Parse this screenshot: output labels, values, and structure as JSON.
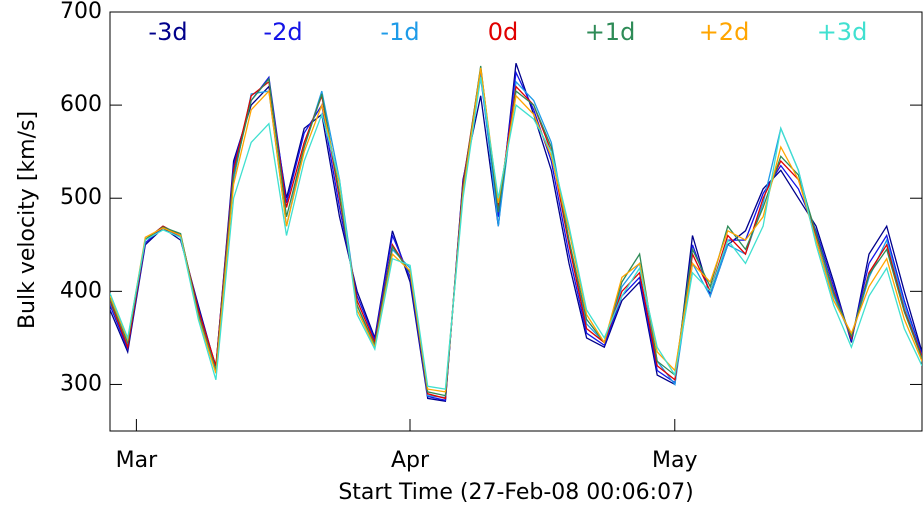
{
  "chart_data": {
    "type": "line",
    "ylabel": "Bulk velocity [km/s]",
    "xlabel": "Start Time (27-Feb-08 00:06:07)",
    "xlim": [
      0,
      92
    ],
    "ylim": [
      250,
      700
    ],
    "xticks": [
      {
        "value": 2.99,
        "label": "Mar"
      },
      {
        "value": 33.99,
        "label": "Apr"
      },
      {
        "value": 63.99,
        "label": "May"
      }
    ],
    "yticks": [
      300,
      400,
      500,
      600,
      700
    ],
    "x": [
      0,
      2,
      4,
      6,
      8,
      10,
      12,
      14,
      16,
      18,
      20,
      22,
      24,
      26,
      28,
      30,
      32,
      34,
      36,
      38,
      40,
      42,
      44,
      46,
      48,
      50,
      52,
      54,
      56,
      58,
      60,
      62,
      64,
      66,
      68,
      70,
      72,
      74,
      76,
      78,
      80,
      82,
      84,
      86,
      88,
      90,
      92
    ],
    "series": [
      {
        "name": "-3d",
        "color": "#00008b",
        "values": [
          380,
          335,
          450,
          468,
          455,
          385,
          318,
          540,
          600,
          620,
          500,
          575,
          590,
          480,
          400,
          350,
          465,
          410,
          285,
          282,
          520,
          610,
          470,
          645,
          590,
          530,
          430,
          350,
          340,
          390,
          410,
          310,
          300,
          460,
          395,
          450,
          465,
          510,
          530,
          500,
          470,
          410,
          345,
          440,
          470,
          400,
          335
        ]
      },
      {
        "name": "-2d",
        "color": "#1414e6",
        "values": [
          385,
          338,
          452,
          469,
          458,
          382,
          319,
          535,
          605,
          630,
          495,
          570,
          600,
          490,
          395,
          348,
          460,
          415,
          287,
          283,
          518,
          630,
          480,
          635,
          595,
          540,
          440,
          355,
          342,
          395,
          415,
          315,
          302,
          450,
          398,
          455,
          455,
          505,
          535,
          510,
          465,
          405,
          348,
          430,
          460,
          390,
          332
        ]
      },
      {
        "name": "-1d",
        "color": "#1e9be8",
        "values": [
          388,
          342,
          455,
          470,
          460,
          378,
          318,
          520,
          612,
          615,
          470,
          555,
          615,
          520,
          385,
          340,
          445,
          425,
          288,
          286,
          512,
          635,
          470,
          625,
          605,
          560,
          455,
          365,
          345,
          405,
          430,
          325,
          300,
          430,
          395,
          450,
          440,
          495,
          575,
          530,
          455,
          395,
          350,
          415,
          455,
          385,
          330
        ]
      },
      {
        "name": "0d",
        "color": "#e00000",
        "values": [
          390,
          340,
          455,
          470,
          460,
          380,
          320,
          530,
          610,
          625,
          490,
          560,
          610,
          500,
          390,
          345,
          450,
          420,
          290,
          285,
          515,
          640,
          490,
          620,
          600,
          550,
          450,
          360,
          345,
          400,
          420,
          320,
          305,
          440,
          400,
          460,
          440,
          500,
          540,
          520,
          460,
          400,
          350,
          420,
          450,
          380,
          330
        ]
      },
      {
        "name": "+1d",
        "color": "#2e8b57",
        "values": [
          392,
          345,
          456,
          469,
          462,
          375,
          315,
          525,
          605,
          628,
          480,
          555,
          612,
          505,
          385,
          342,
          448,
          420,
          292,
          288,
          510,
          642,
          485,
          615,
          600,
          555,
          455,
          370,
          345,
          410,
          440,
          325,
          310,
          445,
          405,
          470,
          445,
          490,
          545,
          525,
          462,
          398,
          352,
          418,
          445,
          378,
          328
        ]
      },
      {
        "name": "+2d",
        "color": "#ffa500",
        "values": [
          395,
          348,
          458,
          468,
          460,
          372,
          312,
          515,
          595,
          615,
          470,
          550,
          600,
          515,
          380,
          340,
          440,
          422,
          295,
          292,
          505,
          640,
          495,
          610,
          590,
          545,
          465,
          375,
          345,
          415,
          430,
          335,
          315,
          430,
          410,
          465,
          455,
          480,
          555,
          520,
          455,
          390,
          355,
          405,
          435,
          370,
          325
        ]
      },
      {
        "name": "+3d",
        "color": "#40e0d0",
        "values": [
          398,
          350,
          455,
          466,
          458,
          370,
          305,
          500,
          560,
          580,
          460,
          540,
          590,
          520,
          375,
          338,
          435,
          428,
          298,
          295,
          500,
          630,
          500,
          600,
          585,
          550,
          470,
          380,
          350,
          395,
          425,
          340,
          310,
          420,
          400,
          455,
          430,
          470,
          575,
          530,
          450,
          385,
          340,
          395,
          425,
          360,
          320
        ]
      }
    ]
  }
}
